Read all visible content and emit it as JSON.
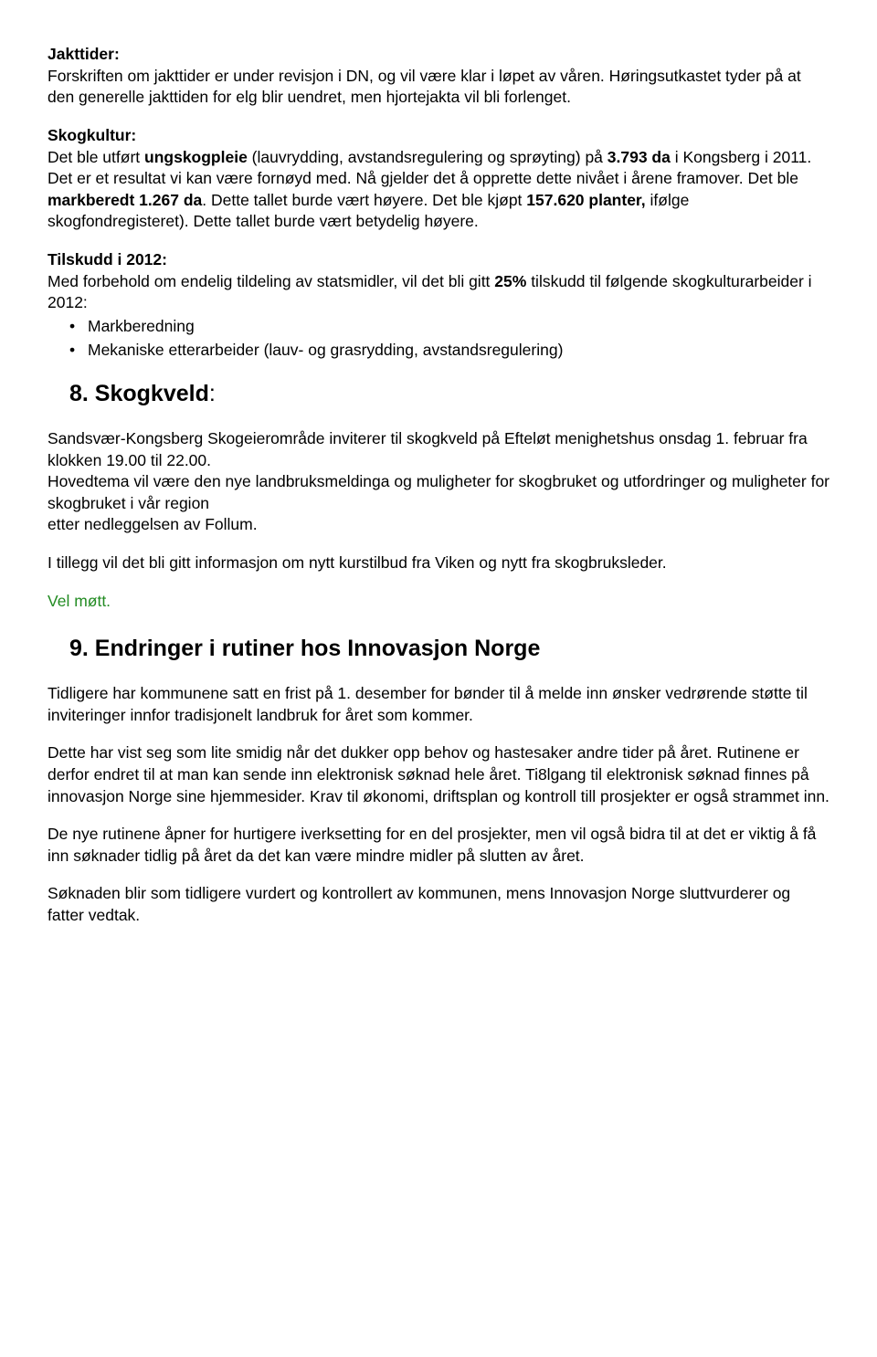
{
  "jakttider": {
    "heading": "Jakttider:",
    "body": "Forskriften om jakttider er under revisjon i DN, og vil være klar i løpet av våren. Høringsutkastet tyder på at den generelle jakttiden for elg blir uendret, men hjortejakta vil bli forlenget."
  },
  "skogkultur": {
    "heading": "Skogkultur:",
    "p1_a": "Det ble utført ",
    "p1_b": "ungskogpleie",
    "p1_c": " (lauvrydding, avstandsregulering og sprøyting) på ",
    "p1_d": "3.793 da",
    "p1_e": " i Kongsberg i 2011. Det er et resultat vi kan være fornøyd med. Nå gjelder det å opprette dette nivået i årene framover. Det ble ",
    "p1_f": "markberedt 1.267 da",
    "p1_g": ". Dette tallet burde vært høyere. Det ble kjøpt ",
    "p1_h": "157.620 planter,",
    "p1_i": " ifølge skogfondregisteret). Dette tallet burde vært betydelig høyere."
  },
  "tilskudd": {
    "heading": "Tilskudd i 2012:",
    "p1_a": "Med forbehold om endelig tildeling av statsmidler, vil det bli gitt ",
    "p1_b": "25%",
    "p1_c": " tilskudd til følgende skogkulturarbeider i 2012:",
    "bullets": [
      "Markberedning",
      "Mekaniske etterarbeider (lauv- og grasrydding, avstandsregulering)"
    ]
  },
  "section8": {
    "num": "8. ",
    "title": "Skogkveld",
    "colon": ":",
    "p1": "Sandsvær-Kongsberg Skogeierområde inviterer til skogkveld på Efteløt menighetshus onsdag 1. februar fra klokken 19.00 til 22.00.",
    "p2": "Hovedtema vil være den nye landbruksmeldinga og muligheter for skogbruket og utfordringer og muligheter for skogbruket i vår region",
    "p3": "etter nedleggelsen av Follum.",
    "p4": "I tillegg vil det bli gitt informasjon om nytt kurstilbud fra Viken og nytt fra skogbruksleder.",
    "vel": "Vel møtt."
  },
  "section9": {
    "title": "9. Endringer i rutiner hos Innovasjon Norge",
    "p1": "Tidligere har kommunene satt en frist på 1. desember for bønder til å melde inn ønsker vedrørende støtte til inviteringer innfor tradisjonelt landbruk for året som kommer.",
    "p2": "Dette har vist seg som lite smidig når det dukker opp behov og hastesaker andre tider på året. Rutinene er derfor endret til at man kan sende inn elektronisk søknad hele året. Ti8lgang til elektronisk søknad finnes på innovasjon Norge sine hjemmesider. Krav til økonomi, driftsplan og kontroll till prosjekter er også strammet inn.",
    "p3": "De nye rutinene åpner for hurtigere iverksetting for en del prosjekter, men vil også bidra til at det er viktig å få inn søknader tidlig på året da det kan være mindre midler på slutten av året.",
    "p4": "Søknaden blir som tidligere vurdert og kontrollert av kommunen, mens Innovasjon Norge sluttvurderer og fatter vedtak."
  }
}
